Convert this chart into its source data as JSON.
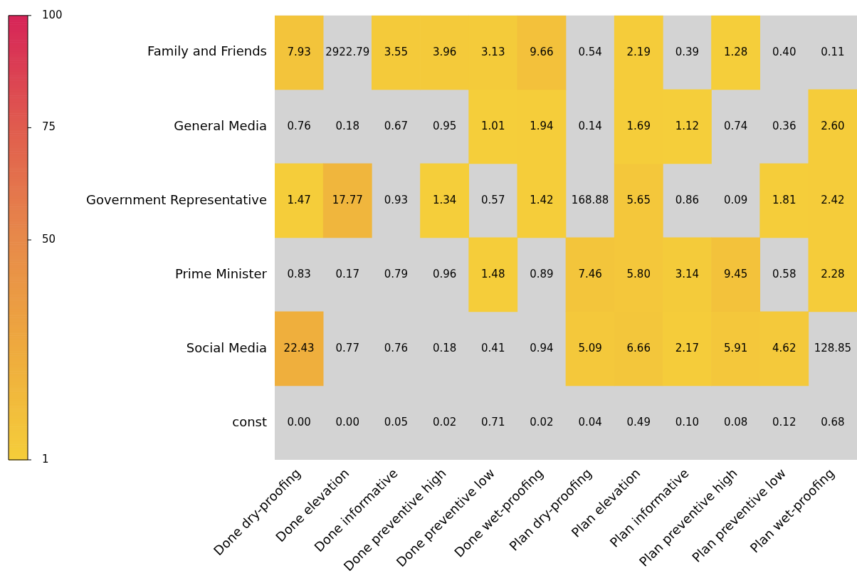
{
  "chart_data": {
    "type": "heatmap",
    "categories": [
      "Done dry-proofing",
      "Done elevation",
      "Done informative",
      "Done preventive high",
      "Done preventive low",
      "Done wet-proofing",
      "Plan dry-proofing",
      "Plan elevation",
      "Plan informative",
      "Plan preventive high",
      "Plan preventive low",
      "Plan wet-proofing"
    ],
    "y_categories": [
      "Family and Friends",
      "General Media",
      "Government Representative",
      "Prime Minister",
      "Social Media",
      "const"
    ],
    "cells": [
      [
        7.93,
        null,
        3.55,
        3.96,
        3.13,
        9.66,
        null,
        2.19,
        null,
        1.28,
        null,
        null
      ],
      [
        null,
        null,
        null,
        null,
        1.01,
        1.94,
        null,
        1.69,
        1.12,
        null,
        null,
        2.6
      ],
      [
        1.47,
        17.77,
        null,
        1.34,
        null,
        1.42,
        null,
        5.65,
        null,
        null,
        1.81,
        2.42
      ],
      [
        null,
        null,
        null,
        null,
        1.48,
        null,
        7.46,
        5.8,
        3.14,
        9.45,
        null,
        2.28
      ],
      [
        22.43,
        null,
        null,
        null,
        null,
        null,
        5.09,
        6.66,
        2.17,
        5.91,
        4.62,
        null
      ],
      [
        null,
        null,
        null,
        null,
        null,
        null,
        null,
        null,
        null,
        null,
        null,
        null
      ]
    ],
    "cell_labels": [
      [
        "7.93",
        "2922.79",
        "3.55",
        "3.96",
        "3.13",
        "9.66",
        "0.54",
        "2.19",
        "0.39",
        "1.28",
        "0.40",
        "0.11"
      ],
      [
        "0.76",
        "0.18",
        "0.67",
        "0.95",
        "1.01",
        "1.94",
        "0.14",
        "1.69",
        "1.12",
        "0.74",
        "0.36",
        "2.60"
      ],
      [
        "1.47",
        "17.77",
        "0.93",
        "1.34",
        "0.57",
        "1.42",
        "168.88",
        "5.65",
        "0.86",
        "0.09",
        "1.81",
        "2.42"
      ],
      [
        "0.83",
        "0.17",
        "0.79",
        "0.96",
        "1.48",
        "0.89",
        "7.46",
        "5.80",
        "3.14",
        "9.45",
        "0.58",
        "2.28"
      ],
      [
        "22.43",
        "0.77",
        "0.76",
        "0.18",
        "0.41",
        "0.94",
        "5.09",
        "6.66",
        "2.17",
        "5.91",
        "4.62",
        "128.85"
      ],
      [
        "0.00",
        "0.00",
        "0.05",
        "0.02",
        "0.71",
        "0.02",
        "0.04",
        "0.49",
        "0.10",
        "0.08",
        "0.12",
        "0.68"
      ]
    ],
    "clim": [
      1,
      100
    ],
    "cticks": [
      1,
      50,
      75,
      100
    ]
  }
}
